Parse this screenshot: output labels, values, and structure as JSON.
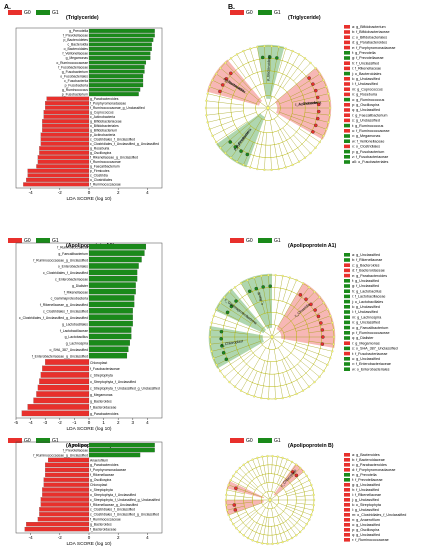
{
  "panel_labels": {
    "a": "A.",
    "b": "B."
  },
  "legend": {
    "g0": "G0",
    "g1": "G1",
    "g0_color": "#e8302c",
    "g1_color": "#1a8a1a"
  },
  "axis_label": "LDA SCORE (log 10)",
  "chart_data": [
    {
      "type": "bar",
      "title": "(Triglyceride)",
      "xlabel": "LDA SCORE (log 10)",
      "xlim": [
        -5,
        5
      ],
      "xticks": [
        -4,
        -2,
        0,
        2,
        4
      ],
      "series": [
        {
          "name": "G1",
          "categories": [
            "g_Prevotella",
            "f_Prevotellaceae",
            "p_Bacteroidetes",
            "c_Bacteroidia",
            "o_Bacteroidales",
            "f_Veillonellaceae",
            "g_Megamonas",
            "o_Ruminococcaceae",
            "f_Fusobacteriaceae",
            "g_Fusobacterium",
            "o_Fusobacteriales",
            "c_Fusobacteriia",
            "p_Fusobacteria",
            "g_Ruminococcus",
            "p_Fusobacterium"
          ],
          "values": [
            4.5,
            4.5,
            4.4,
            4.3,
            4.3,
            4.2,
            4.2,
            3.9,
            3.8,
            3.8,
            3.7,
            3.7,
            3.7,
            3.5,
            3.4
          ]
        },
        {
          "name": "G0",
          "categories": [
            "g_Parabacteroides",
            "f_Porphyromonadaceae",
            "f_Ruminococcaceae_g_Unclassified",
            "g_Coprococcus",
            "c_Actinobacteria",
            "g_Bifidobacteriaceae",
            "o_Bifidobacteriales",
            "g_Bifidobacterium",
            "p_Actinobacteria",
            "c_Clostridiales_f_Unclassified",
            "c_Clostridiales_f_Unclassified_g_Unclassified",
            "g_Roseburia",
            "g_Oscillospira",
            "f_Rikenellaceae_g_Unclassified",
            "f_Ruminococcaceae",
            "g_Faecalibacterium",
            "p_Firmicutes",
            "c_Clostridia",
            "o_Clostridiales",
            "f_Ruminococcaceae"
          ],
          "values": [
            -2.9,
            -3.0,
            -3.0,
            -3.1,
            -3.1,
            -3.2,
            -3.2,
            -3.2,
            -3.3,
            -3.3,
            -3.3,
            -3.4,
            -3.4,
            -3.5,
            -3.5,
            -3.6,
            -4.2,
            -4.2,
            -4.3,
            -4.5
          ]
        }
      ]
    },
    {
      "type": "bar",
      "title": "(Apolipoprotein A1)",
      "xlabel": "LDA SCORE (log 10)",
      "xlim": [
        -5,
        5
      ],
      "xticks": [
        -5,
        -4,
        -3,
        -2,
        -1,
        0,
        1,
        2,
        3,
        4
      ],
      "series": [
        {
          "name": "G1",
          "categories": [
            "f_Ruminococcaceae",
            "g_Faecalibacterium",
            "f_Ruminococcaceae_g_Unclassified",
            "o_Enterobacteriales",
            "c_Clostridiales_f_Unclassified",
            "c_Enterobacteriaceae",
            "g_Dialister",
            "f_Rikenellaceae",
            "c_Gammaproteobacteria",
            "f_Rikenellaceae_g_Unclassified",
            "c_Clostridiales_f_Unclassified",
            "c_Clostridiales_f_Unclassified_g_Unclassified",
            "g_Lactobacillales",
            "f_Lactobacillaceae",
            "g_Lactobacillus",
            "g_Lachnospira",
            "o_SHA_387_Unclassified",
            "f_Enterobacteriaceae_g_Unclassified"
          ],
          "values": [
            3.9,
            3.8,
            3.6,
            3.4,
            3.3,
            3.3,
            3.2,
            3.2,
            3.1,
            3.1,
            3.0,
            3.0,
            3.0,
            2.9,
            2.9,
            2.8,
            2.7,
            2.6
          ]
        },
        {
          "name": "G0",
          "categories": [
            "Chloroplast",
            "f_Fusobacteriaceae",
            "c_Streptophyta",
            "o_Streptophyta_f_Unclassified",
            "c_Streptophyta_f_Unclassified_g_Unclassified",
            "g_Megamonas",
            "g_Bacteroides",
            "f_Bacteroidaceae",
            "g_Parabacteroides"
          ],
          "values": [
            -3.0,
            -3.2,
            -3.3,
            -3.4,
            -3.5,
            -3.6,
            -3.8,
            -4.2,
            -4.6
          ]
        }
      ]
    },
    {
      "type": "bar",
      "title": "(Apolipoprotein B)",
      "xlabel": "LDA SCORE (log 10)",
      "xlim": [
        -5,
        5
      ],
      "xticks": [
        -4,
        -2,
        0,
        2,
        4
      ],
      "series": [
        {
          "name": "G1",
          "categories": [
            "g_Prevotella",
            "f_Prevotellaceae",
            "f_Ruminococcaceae_g_Unclassified"
          ],
          "values": [
            4.5,
            4.5,
            3.5
          ]
        },
        {
          "name": "G0",
          "categories": [
            "Anaerofilum",
            "g_Parabacteroides",
            "f_Porphyromonadaceae",
            "f_Rikenellaceae",
            "g_Oscillospira",
            "Chloroplast",
            "c_Streptophyta",
            "o_Streptophyta_f_Unclassified",
            "c_Streptophyta_f_Unclassified_g_Unclassified",
            "f_Rikenellaceae_g_Unclassified",
            "c_Clostridiales_f_Unclassified",
            "c_Clostridiales_f_Unclassified_g_Unclassified",
            "f_Ruminococcaceae",
            "g_Bacteroides",
            "f_Bacteroidaceae"
          ],
          "values": [
            -2.8,
            -3.0,
            -3.0,
            -3.0,
            -3.1,
            -3.1,
            -3.2,
            -3.2,
            -3.3,
            -3.3,
            -3.4,
            -3.4,
            -3.5,
            -4.3,
            -4.4
          ]
        }
      ]
    }
  ],
  "cladograms": [
    {
      "title": "(Triglyceride)",
      "legend_items": [
        {
          "label": "a: g_Bifidobacterium",
          "g": 0
        },
        {
          "label": "b: f_Bifidobacteriaceae",
          "g": 0
        },
        {
          "label": "c: o_Bifidobacteriales",
          "g": 0
        },
        {
          "label": "d: g_Parabacteroides",
          "g": 0
        },
        {
          "label": "e: f_Porphyromonadaceae",
          "g": 0
        },
        {
          "label": "f: g_Prevotella",
          "g": 1
        },
        {
          "label": "g: f_Prevotellaceae",
          "g": 1
        },
        {
          "label": "h: f_Unclassified",
          "g": 0
        },
        {
          "label": "i: f_Rikenellaceae",
          "g": 0
        },
        {
          "label": "j: o_Bacteroidales",
          "g": 1
        },
        {
          "label": "k: g_Unclassified",
          "g": 0
        },
        {
          "label": "l: f_Unclassified",
          "g": 0
        },
        {
          "label": "m: g_Coprococcus",
          "g": 0
        },
        {
          "label": "n: g_Roseburia",
          "g": 0
        },
        {
          "label": "o: g_Ruminococcus",
          "g": 1
        },
        {
          "label": "p: g_Oscillospira",
          "g": 0
        },
        {
          "label": "q: g_Unclassified",
          "g": 0
        },
        {
          "label": "r: g_Faecalibacterium",
          "g": 0
        },
        {
          "label": "s: g_Unclassified",
          "g": 0
        },
        {
          "label": "t: g_Ruminococcus",
          "g": 1
        },
        {
          "label": "u: f_Ruminococcaceae",
          "g": 0
        },
        {
          "label": "v: g_Megamonas",
          "g": 1
        },
        {
          "label": "w: f_Veillonellaceae",
          "g": 1
        },
        {
          "label": "x: o_Clostridiales",
          "g": 0
        },
        {
          "label": "y: g_Fusobacterium",
          "g": 1
        },
        {
          "label": "z: f_Fusobacteriaceae",
          "g": 1
        },
        {
          "label": "a0: o_Fusobacteriales",
          "g": 1
        }
      ],
      "clade_labels": [
        "c_Actinobacteria",
        "p_Actinobacteria",
        "c_Bacteroidia",
        "p_Bacteroidetes",
        "c_Clostridia",
        "p_Firmicutes",
        "c_Fusobacteriia"
      ]
    },
    {
      "title": "(Apolipoprotein A1)",
      "legend_items": [
        {
          "label": "a: g_Unclassified",
          "g": 1
        },
        {
          "label": "b: f_Rikenellaceae",
          "g": 1
        },
        {
          "label": "c: g_Bacteroides",
          "g": 0
        },
        {
          "label": "d: f_Bacteroidaceae",
          "g": 0
        },
        {
          "label": "e: g_Parabacteroides",
          "g": 0
        },
        {
          "label": "f: g_Unclassified",
          "g": 1
        },
        {
          "label": "g: f_Unclassified",
          "g": 1
        },
        {
          "label": "h: g_Lactobacillus",
          "g": 1
        },
        {
          "label": "i: f_Lactobacillaceae",
          "g": 1
        },
        {
          "label": "j: o_Lactobacillales",
          "g": 1
        },
        {
          "label": "k: g_Unclassified",
          "g": 1
        },
        {
          "label": "l: f_Unclassified",
          "g": 1
        },
        {
          "label": "m: g_Lachnospira",
          "g": 1
        },
        {
          "label": "n: g_Unclassified",
          "g": 1
        },
        {
          "label": "o: g_Faecalibacterium",
          "g": 1
        },
        {
          "label": "p: f_Ruminococcaceae",
          "g": 1
        },
        {
          "label": "q: g_Dialister",
          "g": 1
        },
        {
          "label": "r: g_Megamonas",
          "g": 0
        },
        {
          "label": "s: o_SHA_387_Unclassified",
          "g": 1
        },
        {
          "label": "t: f_Fusobacteriaceae",
          "g": 0
        },
        {
          "label": "u: g_Unclassified",
          "g": 1
        },
        {
          "label": "v: f_Enterobacteriaceae",
          "g": 1
        },
        {
          "label": "w: o_Enterobacteriales",
          "g": 1
        }
      ],
      "clade_labels": [
        "c_Bacilli",
        "c_Clostridia",
        "c_Chloroplast",
        "c_Gammaproteobacteria"
      ]
    },
    {
      "title": "(Apolipoprotein B)",
      "legend_items": [
        {
          "label": "a: g_Bacteroides",
          "g": 0
        },
        {
          "label": "b: f_Bacteroidaceae",
          "g": 0
        },
        {
          "label": "c: g_Parabacteroides",
          "g": 0
        },
        {
          "label": "d: f_Porphyromonadaceae",
          "g": 0
        },
        {
          "label": "e: g_Prevotella",
          "g": 1
        },
        {
          "label": "f: f_Prevotellaceae",
          "g": 1
        },
        {
          "label": "g: g_Unclassified",
          "g": 0
        },
        {
          "label": "h: f_Unclassified",
          "g": 0
        },
        {
          "label": "i: f_Rikenellaceae",
          "g": 0
        },
        {
          "label": "j: g_Unclassified",
          "g": 0
        },
        {
          "label": "k: o_Streptophyta",
          "g": 0
        },
        {
          "label": "l: g_Unclassified",
          "g": 0
        },
        {
          "label": "m: o_Clostridiales_f_Unclassified",
          "g": 0
        },
        {
          "label": "n: g_Anaerofilum",
          "g": 0
        },
        {
          "label": "o: g_Unclassified",
          "g": 0
        },
        {
          "label": "p: g_Oscillospira",
          "g": 0
        },
        {
          "label": "q: g_Unclassified",
          "g": 0
        },
        {
          "label": "r: f_Ruminococcaceae",
          "g": 0
        }
      ],
      "clade_labels": [
        "c_Chloroplast"
      ]
    }
  ]
}
